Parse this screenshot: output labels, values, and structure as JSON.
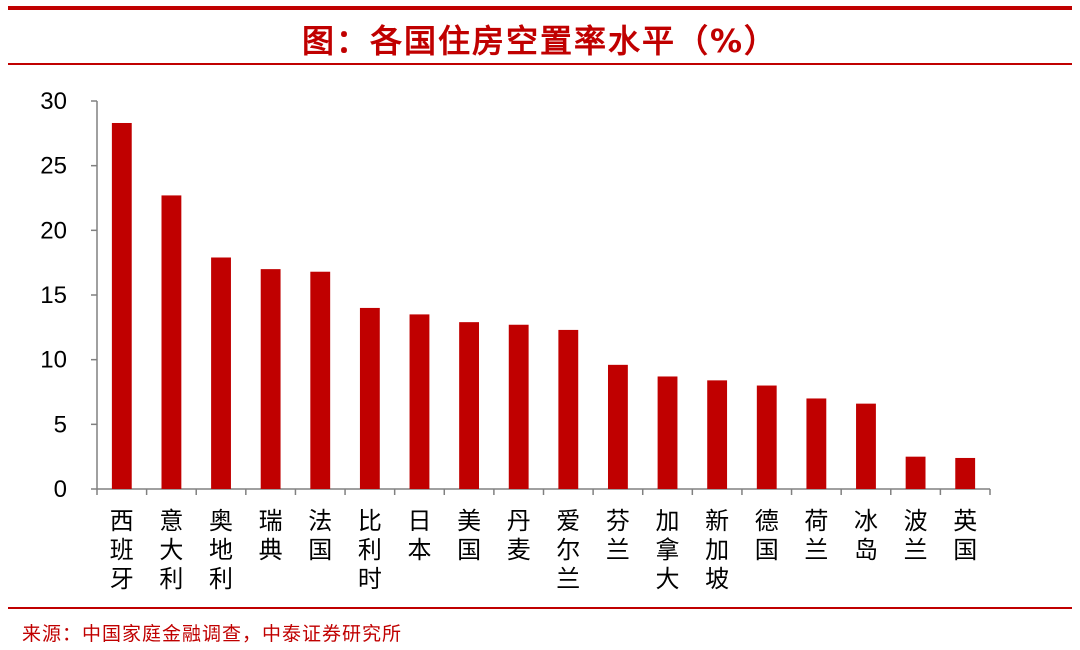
{
  "title": "图：各国住房空置率水平（%）",
  "source": "来源：中国家庭金融调查，中泰证券研究所",
  "colors": {
    "accent": "#c00000",
    "bar": "#c00000",
    "axis": "#808080",
    "text": "#000000"
  },
  "chart_data": {
    "type": "bar",
    "title": "图：各国住房空置率水平（%）",
    "xlabel": "",
    "ylabel": "",
    "ylim": [
      0,
      30
    ],
    "yticks": [
      0,
      5,
      10,
      15,
      20,
      25,
      30
    ],
    "grid": false,
    "categories": [
      "西班牙",
      "意大利",
      "奥地利",
      "瑞典",
      "法国",
      "比利时",
      "日本",
      "美国",
      "丹麦",
      "爱尔兰",
      "芬兰",
      "加拿大",
      "新加坡",
      "德国",
      "荷兰",
      "冰岛",
      "波兰",
      "英国"
    ],
    "values": [
      28.3,
      22.7,
      17.9,
      17.0,
      16.8,
      14.0,
      13.5,
      12.9,
      12.7,
      12.3,
      9.6,
      8.7,
      8.4,
      8.0,
      7.0,
      6.6,
      2.5,
      2.4
    ]
  }
}
